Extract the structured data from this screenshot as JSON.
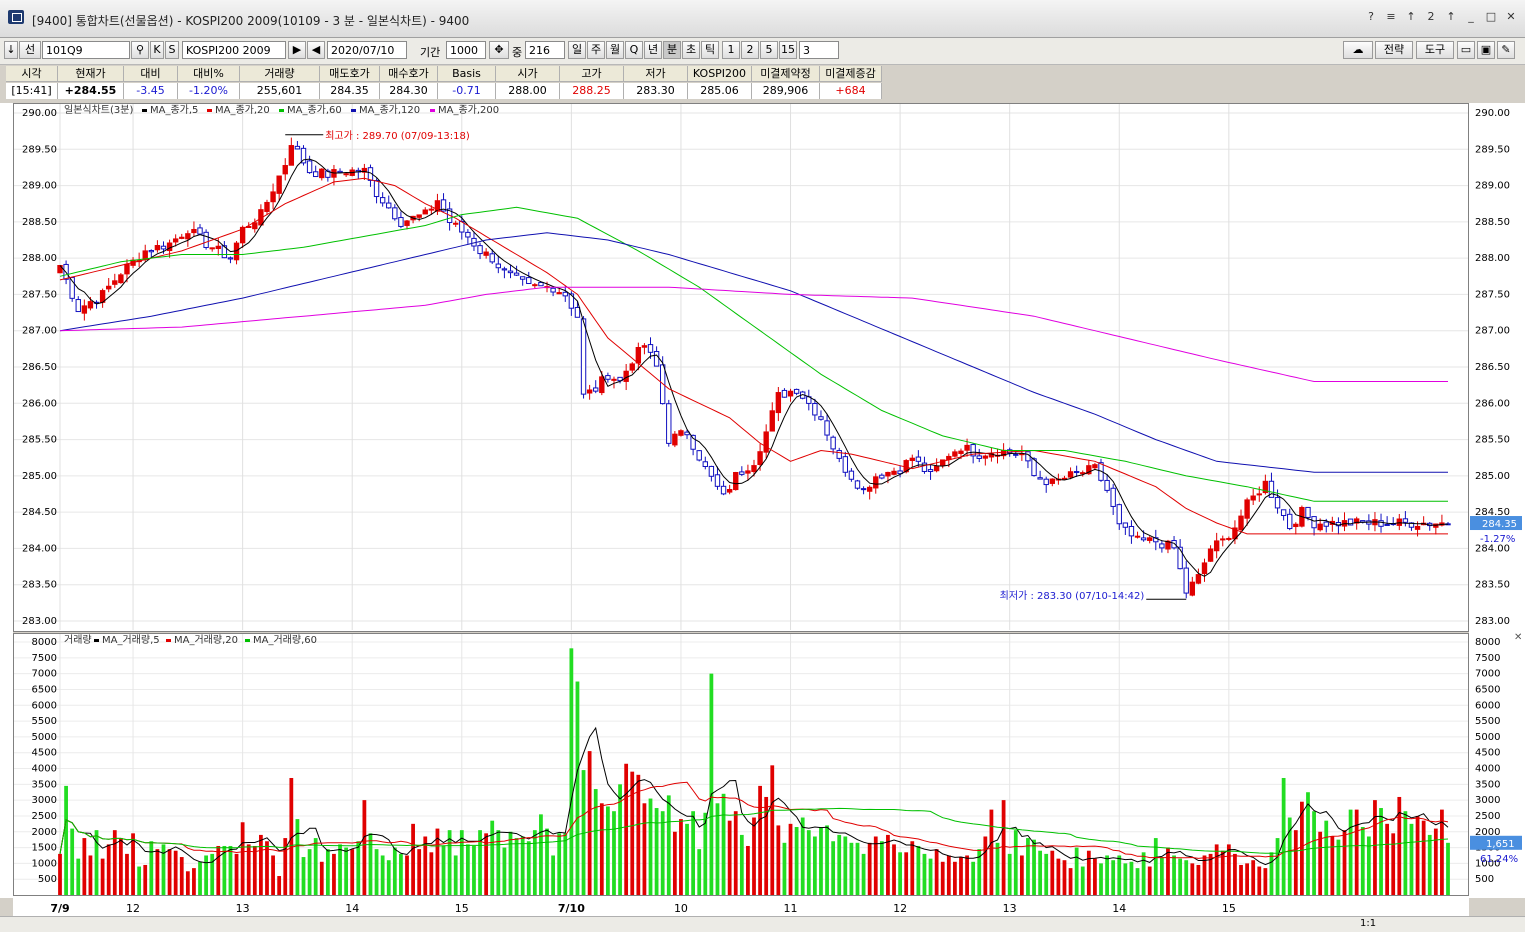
{
  "window": {
    "title": "[9400] 통합차트(선물옵션) - KOSPI200 2009(10109 - 3 분 - 일본식차트) - 9400",
    "buttons": [
      "?",
      "≡",
      "↑",
      "2",
      "↑",
      "_",
      "□",
      "✕"
    ]
  },
  "toolbar": {
    "down_arrow": "↓",
    "type_label": "선",
    "code": "101Q9",
    "k_label": "K",
    "s_label": "S",
    "name": "KOSPI200 2009",
    "date": "2020/07/10",
    "period_label": "기간",
    "period_value": "1000",
    "count_label": "중",
    "count_value": "216",
    "intervals": [
      "일",
      "주",
      "월",
      "Q",
      "년",
      "분",
      "초",
      "틱",
      "1",
      "2",
      "5",
      "15"
    ],
    "interval_value": "3",
    "strategy_label": "전략",
    "tools_label": "도구"
  },
  "quotes": {
    "headers": [
      "시각",
      "현재가",
      "대비",
      "대비%",
      "거래량",
      "매도호가",
      "매수호가",
      "Basis",
      "시가",
      "고가",
      "저가",
      "KOSPI200",
      "미결제약정",
      "미결제증감"
    ],
    "values": [
      "[15:41]",
      "+284.55",
      "-3.45",
      "-1.20%",
      "255,601",
      "284.35",
      "284.30",
      "-0.71",
      "288.00",
      "288.25",
      "283.30",
      "285.06",
      "289,906",
      "+684"
    ],
    "value_colors": [
      "#000000",
      "#000000",
      "#1a1ad0",
      "#1a1ad0",
      "#000000",
      "#000000",
      "#000000",
      "#1a1ad0",
      "#000000",
      "#e00000",
      "#000000",
      "#000000",
      "#000000",
      "#e00000"
    ]
  },
  "price_panel": {
    "legend_title": "일본식차트(3분)",
    "legend_items": [
      {
        "label": "MA_종가,5",
        "color": "#000000"
      },
      {
        "label": "MA_종가,20",
        "color": "#e00000"
      },
      {
        "label": "MA_종가,60",
        "color": "#00c000"
      },
      {
        "label": "MA_종가,120",
        "color": "#1010b0"
      },
      {
        "label": "MA_종가,200",
        "color": "#e000e0"
      }
    ],
    "high_annotation": "최고가 : 289.70 (07/09-13:18)",
    "low_annotation": "최저가 : 283.30 (07/10-14:42)",
    "current_tag": "284.35",
    "current_pct": "-1.27%"
  },
  "volume_panel": {
    "legend_title": "거래량",
    "legend_items": [
      {
        "label": "MA_거래량,5",
        "color": "#000000"
      },
      {
        "label": "MA_거래량,20",
        "color": "#e00000"
      },
      {
        "label": "MA_거래량,60",
        "color": "#00c000"
      }
    ],
    "current_tag": "1,651",
    "current_pct": "61.24%"
  },
  "statusbar": {
    "scale_label": "1:1"
  },
  "chart_data": [
    {
      "type": "candlestick",
      "title": "일본식차트(3분)",
      "ylim": [
        283.0,
        290.0
      ],
      "y_ticks": [
        "290.00",
        "289.50",
        "289.00",
        "288.50",
        "288.00",
        "287.50",
        "287.00",
        "286.50",
        "286.00",
        "285.50",
        "285.00",
        "284.50",
        "284.00",
        "283.50",
        "283.00"
      ],
      "x_tick_labels": [
        "7/9",
        "12",
        "13",
        "14",
        "15",
        "7/10",
        "10",
        "11",
        "12",
        "13",
        "14",
        "15"
      ],
      "x_tick_index": [
        0,
        12,
        30,
        48,
        66,
        84,
        102,
        120,
        138,
        156,
        174,
        192
      ],
      "grid": true,
      "close_path": [
        [
          0,
          287.9
        ],
        [
          3,
          287.3
        ],
        [
          7,
          287.5
        ],
        [
          10,
          287.8
        ],
        [
          14,
          288.1
        ],
        [
          18,
          288.2
        ],
        [
          21,
          288.4
        ],
        [
          24,
          288.2
        ],
        [
          28,
          288.0
        ],
        [
          30,
          288.4
        ],
        [
          33,
          288.6
        ],
        [
          37,
          289.3
        ],
        [
          38,
          289.6
        ],
        [
          41,
          289.2
        ],
        [
          44,
          289.15
        ],
        [
          47,
          289.2
        ],
        [
          50,
          289.2
        ],
        [
          52,
          288.9
        ],
        [
          54,
          288.7
        ],
        [
          56,
          288.5
        ],
        [
          60,
          288.6
        ],
        [
          62,
          288.8
        ],
        [
          64,
          288.5
        ],
        [
          67,
          288.3
        ],
        [
          69,
          288.1
        ],
        [
          71,
          288.0
        ],
        [
          73,
          287.8
        ],
        [
          75,
          287.7
        ],
        [
          77,
          287.6
        ],
        [
          79,
          287.6
        ],
        [
          81,
          287.6
        ],
        [
          83,
          287.5
        ],
        [
          85,
          287.2
        ],
        [
          86,
          286.1
        ],
        [
          88,
          286.2
        ],
        [
          90,
          286.4
        ],
        [
          92,
          286.3
        ],
        [
          94,
          286.6
        ],
        [
          96,
          286.8
        ],
        [
          98,
          286.5
        ],
        [
          100,
          285.5
        ],
        [
          103,
          285.6
        ],
        [
          106,
          285.1
        ],
        [
          109,
          284.7
        ],
        [
          111,
          285.0
        ],
        [
          114,
          285.2
        ],
        [
          116,
          285.6
        ],
        [
          118,
          286.1
        ],
        [
          121,
          286.2
        ],
        [
          123,
          286.0
        ],
        [
          125,
          285.8
        ],
        [
          128,
          285.2
        ],
        [
          130,
          285.0
        ],
        [
          132,
          284.8
        ],
        [
          134,
          285.0
        ],
        [
          138,
          285.1
        ],
        [
          140,
          285.25
        ],
        [
          143,
          285.0
        ],
        [
          146,
          285.3
        ],
        [
          148,
          285.4
        ],
        [
          151,
          285.3
        ],
        [
          154,
          285.35
        ],
        [
          158,
          285.3
        ],
        [
          160,
          285.0
        ],
        [
          163,
          284.9
        ],
        [
          166,
          285.0
        ],
        [
          170,
          285.1
        ],
        [
          172,
          284.8
        ],
        [
          174,
          284.3
        ],
        [
          177,
          284.1
        ],
        [
          180,
          284.1
        ],
        [
          183,
          284.0
        ],
        [
          185,
          283.4
        ],
        [
          187,
          283.6
        ],
        [
          189,
          284.0
        ],
        [
          191,
          284.1
        ],
        [
          193,
          284.3
        ],
        [
          195,
          284.6
        ],
        [
          198,
          284.9
        ],
        [
          200,
          284.6
        ],
        [
          202,
          284.3
        ],
        [
          204,
          284.5
        ],
        [
          206,
          284.35
        ]
      ],
      "high": {
        "value": 289.7,
        "label": "07/09-13:18"
      },
      "low": {
        "value": 283.3,
        "label": "07/10-14:42"
      },
      "last": 284.35,
      "series": [
        {
          "name": "MA_종가,5",
          "color": "#000000"
        },
        {
          "name": "MA_종가,20",
          "color": "#e00000",
          "points": [
            [
              0,
              287.7
            ],
            [
              10,
              287.9
            ],
            [
              20,
              288.1
            ],
            [
              30,
              288.4
            ],
            [
              37,
              288.75
            ],
            [
              45,
              289.05
            ],
            [
              50,
              289.1
            ],
            [
              55,
              289.0
            ],
            [
              60,
              288.75
            ],
            [
              65,
              288.55
            ],
            [
              70,
              288.3
            ],
            [
              75,
              288.05
            ],
            [
              80,
              287.8
            ],
            [
              85,
              287.5
            ],
            [
              90,
              286.9
            ],
            [
              95,
              286.55
            ],
            [
              100,
              286.2
            ],
            [
              110,
              285.8
            ],
            [
              115,
              285.45
            ],
            [
              120,
              285.2
            ],
            [
              125,
              285.35
            ],
            [
              130,
              285.3
            ],
            [
              135,
              285.2
            ],
            [
              140,
              285.1
            ],
            [
              150,
              285.3
            ],
            [
              160,
              285.35
            ],
            [
              170,
              285.2
            ],
            [
              180,
              284.85
            ],
            [
              185,
              284.55
            ],
            [
              190,
              284.35
            ],
            [
              195,
              284.2
            ],
            [
              200,
              284.2
            ],
            [
              206,
              284.2
            ]
          ]
        },
        {
          "name": "MA_종가,60",
          "color": "#00c000",
          "points": [
            [
              0,
              287.75
            ],
            [
              10,
              287.95
            ],
            [
              20,
              288.05
            ],
            [
              30,
              288.05
            ],
            [
              40,
              288.15
            ],
            [
              50,
              288.3
            ],
            [
              60,
              288.45
            ],
            [
              66,
              288.6
            ],
            [
              75,
              288.7
            ],
            [
              85,
              288.55
            ],
            [
              95,
              288.1
            ],
            [
              105,
              287.6
            ],
            [
              115,
              287.0
            ],
            [
              125,
              286.4
            ],
            [
              135,
              285.9
            ],
            [
              145,
              285.55
            ],
            [
              155,
              285.35
            ],
            [
              165,
              285.35
            ],
            [
              175,
              285.2
            ],
            [
              185,
              285.0
            ],
            [
              195,
              284.85
            ],
            [
              206,
              284.65
            ]
          ]
        },
        {
          "name": "MA_종가,120",
          "color": "#1010b0",
          "points": [
            [
              0,
              287.0
            ],
            [
              15,
              287.2
            ],
            [
              30,
              287.45
            ],
            [
              45,
              287.75
            ],
            [
              60,
              288.05
            ],
            [
              70,
              288.25
            ],
            [
              80,
              288.35
            ],
            [
              90,
              288.25
            ],
            [
              100,
              288.05
            ],
            [
              110,
              287.8
            ],
            [
              120,
              287.55
            ],
            [
              130,
              287.2
            ],
            [
              140,
              286.85
            ],
            [
              150,
              286.5
            ],
            [
              160,
              286.15
            ],
            [
              170,
              285.85
            ],
            [
              180,
              285.5
            ],
            [
              190,
              285.2
            ],
            [
              206,
              285.05
            ]
          ]
        },
        {
          "name": "MA_종가,200",
          "color": "#e000e0",
          "points": [
            [
              0,
              287.0
            ],
            [
              20,
              287.05
            ],
            [
              40,
              287.2
            ],
            [
              60,
              287.35
            ],
            [
              70,
              287.5
            ],
            [
              80,
              287.6
            ],
            [
              100,
              287.6
            ],
            [
              120,
              287.5
            ],
            [
              140,
              287.45
            ],
            [
              160,
              287.2
            ],
            [
              175,
              286.9
            ],
            [
              190,
              286.6
            ],
            [
              206,
              286.3
            ]
          ]
        }
      ]
    },
    {
      "type": "bar",
      "title": "거래량",
      "ylim": [
        0,
        8000
      ],
      "y_ticks": [
        "8000",
        "7500",
        "7000",
        "6500",
        "6000",
        "5500",
        "5000",
        "4500",
        "4000",
        "3500",
        "3000",
        "2500",
        "2000",
        "1500",
        "1000",
        "500"
      ],
      "values": [
        1300,
        3450,
        2100,
        1150,
        1800,
        1250,
        2050,
        1150,
        1600,
        2050,
        1800,
        1300,
        1950,
        900,
        950,
        1700,
        1450,
        1600,
        1450,
        1400,
        1200,
        750,
        850,
        1050,
        1250,
        1300,
        1550,
        1550,
        1550,
        1300,
        2300,
        1600,
        1550,
        1900,
        1700,
        1250,
        600,
        1800,
        3700,
        2400,
        1200,
        1450,
        1800,
        1050,
        1450,
        1300,
        1600,
        1500,
        1450,
        1700,
        3000,
        1950,
        1450,
        1250,
        1100,
        1500,
        1300,
        1250,
        2250,
        1450,
        1850,
        1350,
        2100,
        1550,
        2050,
        1250,
        2050,
        1600,
        1550,
        2050,
        1950,
        2350,
        2050,
        1500,
        2000,
        1800,
        1850,
        1700,
        2050,
        2550,
        2100,
        1250,
        1950,
        1950,
        7800,
        6750,
        3950,
        4550,
        3350,
        2900,
        2800,
        2650,
        3500,
        4150,
        3900,
        3800,
        2900,
        3050,
        2750,
        2650,
        3150,
        2000,
        2400,
        2250,
        2650,
        1450,
        2600,
        7000,
        2900,
        3200,
        2350,
        2650,
        1900,
        1550,
        2450,
        3450,
        3100,
        4100,
        2200,
        1650,
        2250,
        2150,
        2450,
        2050,
        1850,
        2150,
        2200,
        1700,
        1900,
        1850,
        1650,
        1650,
        1300,
        1650,
        1850,
        1700,
        1900,
        1600,
        1350,
        1350,
        1700,
        1550,
        1300,
        1150,
        1450,
        1050,
        1250,
        1050,
        1200,
        1250,
        1050,
        1450,
        1850,
        2700,
        1650,
        3000,
        1300,
        2050,
        1250,
        1800,
        1750,
        1400,
        1300,
        1400,
        1150,
        1100,
        850,
        1500,
        900,
        1400,
        1150,
        1000,
        1250,
        1100,
        1250,
        1000,
        1050,
        850,
        1350,
        900,
        1800,
        1200,
        1500,
        1250,
        1150,
        1100,
        1000,
        950,
        1250,
        1300,
        1600,
        1400,
        1600,
        1300,
        950,
        1000,
        1100,
        900,
        850,
        1350,
        1800,
        3700,
        2450,
        2050,
        2950,
        3250,
        2650,
        2000,
        2350,
        1850,
        1750,
        2050,
        2700,
        2700,
        2150,
        1850,
        3000,
        2750,
        2250,
        1950,
        3100,
        2650,
        2250,
        2500,
        2350,
        1900,
        2100,
        2700,
        1650
      ]
    }
  ]
}
